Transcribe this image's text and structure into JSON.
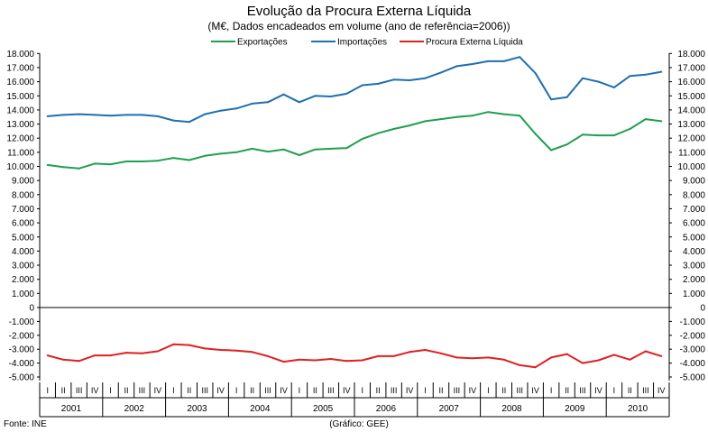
{
  "chart_data": {
    "type": "line",
    "title": "Evolução da Procura Externa Líquida",
    "subtitle": "(M€, Dados encadeados em volume (ano de referência=2006))",
    "source_left": "Fonte: INE",
    "source_right": "(Gráfico: GEE)",
    "quarters": [
      "I",
      "II",
      "III",
      "IV"
    ],
    "years": [
      "2001",
      "2002",
      "2003",
      "2004",
      "2005",
      "2006",
      "2007",
      "2008",
      "2009",
      "2010"
    ],
    "ylim": [
      -5000,
      18000
    ],
    "yticks": [
      "18.000",
      "17.000",
      "16.000",
      "15.000",
      "14.000",
      "13.000",
      "12.000",
      "11.000",
      "10.000",
      "9.000",
      "8.000",
      "7.000",
      "6.000",
      "5.000",
      "4.000",
      "3.000",
      "2.000",
      "1.000",
      "0",
      "-1.000",
      "-2.000",
      "-3.000",
      "-4.000",
      "-5.000"
    ],
    "series": [
      {
        "name": "Exportações",
        "color": "#1fa050",
        "values": [
          10100,
          9950,
          9850,
          10200,
          10150,
          10350,
          10350,
          10400,
          10600,
          10450,
          10750,
          10900,
          11000,
          11250,
          11050,
          11200,
          10800,
          11200,
          11250,
          11300,
          11950,
          12350,
          12650,
          12900,
          13200,
          13350,
          13500,
          13600,
          13850,
          13700,
          13600,
          12300,
          11150,
          11550,
          12250,
          12200,
          12200,
          12650,
          13350,
          13200
        ]
      },
      {
        "name": "Importações",
        "color": "#1f6fb0",
        "values": [
          13550,
          13650,
          13700,
          13650,
          13600,
          13650,
          13650,
          13550,
          13250,
          13150,
          13700,
          13950,
          14100,
          14450,
          14550,
          15100,
          14550,
          15000,
          14950,
          15150,
          15750,
          15850,
          16150,
          16100,
          16250,
          16650,
          17100,
          17250,
          17450,
          17450,
          17750,
          16600,
          14750,
          14900,
          16250,
          16000,
          15600,
          16400,
          16500,
          16700
        ]
      },
      {
        "name": "Procura Externa Líquida",
        "color": "#e02020",
        "values": [
          -3450,
          -3750,
          -3850,
          -3450,
          -3450,
          -3250,
          -3300,
          -3150,
          -2650,
          -2700,
          -2950,
          -3050,
          -3100,
          -3200,
          -3500,
          -3900,
          -3750,
          -3800,
          -3700,
          -3850,
          -3800,
          -3500,
          -3500,
          -3200,
          -3050,
          -3300,
          -3600,
          -3650,
          -3600,
          -3750,
          -4150,
          -4300,
          -3600,
          -3350,
          -4000,
          -3800,
          -3400,
          -3750,
          -3150,
          -3500
        ]
      }
    ]
  }
}
